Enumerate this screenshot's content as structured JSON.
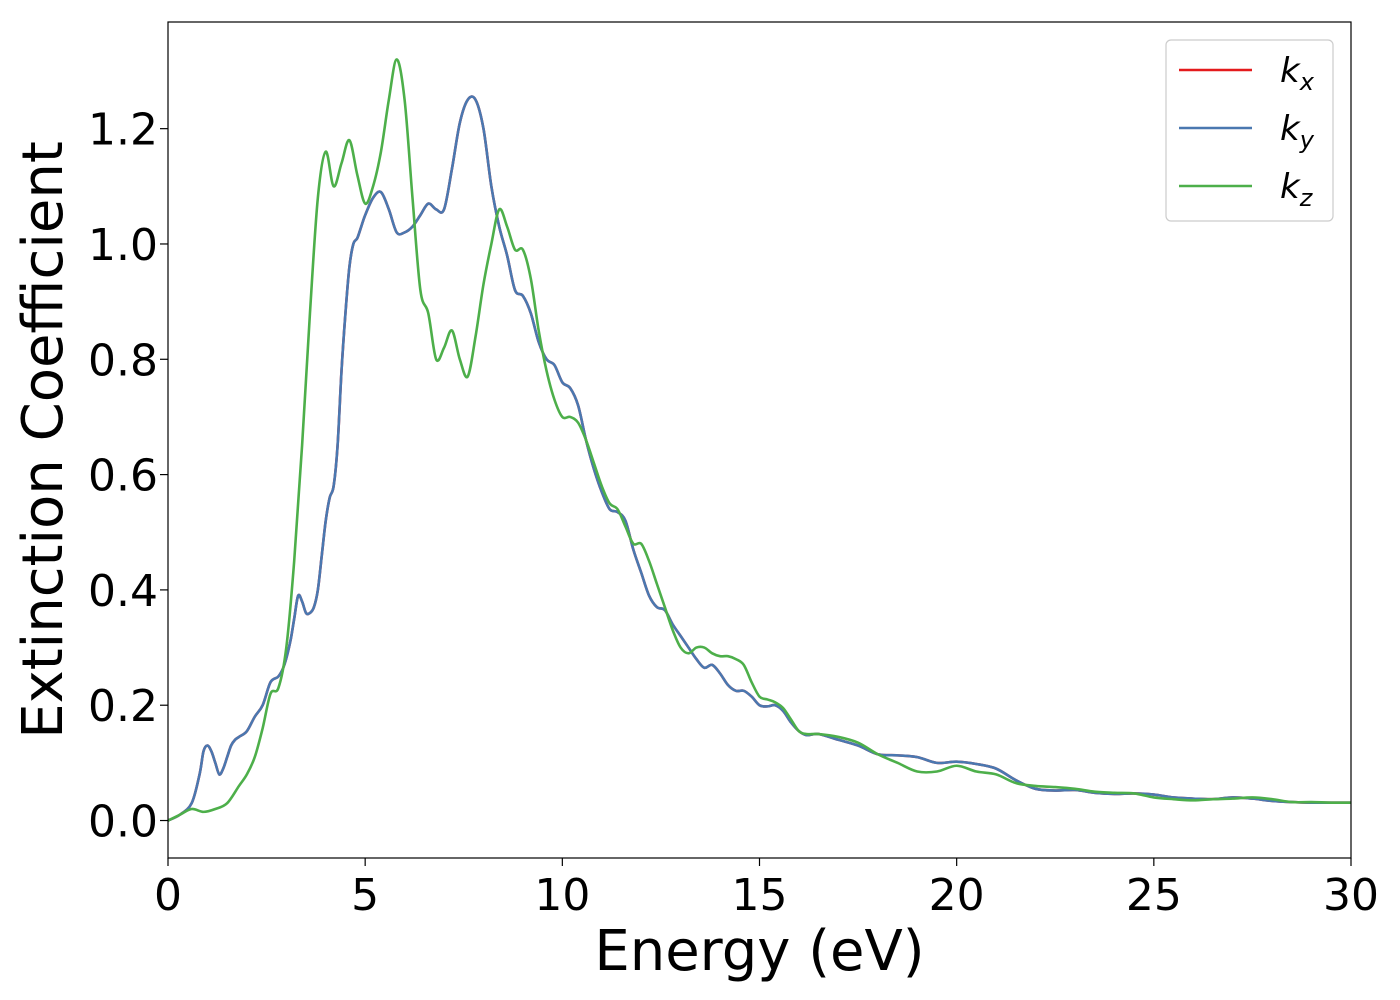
{
  "chart_data": {
    "type": "line",
    "title": "",
    "xlabel": "Energy (eV)",
    "ylabel": "Extinction Coefficient",
    "xlim": [
      0,
      30
    ],
    "ylim": [
      -0.065,
      1.385
    ],
    "xticks": [
      0,
      5,
      10,
      15,
      20,
      25,
      30
    ],
    "xtick_labels": [
      "0",
      "5",
      "10",
      "15",
      "20",
      "25",
      "30"
    ],
    "yticks": [
      0.0,
      0.2,
      0.4,
      0.6,
      0.8,
      1.0,
      1.2
    ],
    "ytick_labels": [
      "0.0",
      "0.2",
      "0.4",
      "0.6",
      "0.8",
      "1.0",
      "1.2"
    ],
    "grid": false,
    "legend_position": "top-right",
    "series": [
      {
        "name": "k_x",
        "legend_base": "k",
        "legend_sub": "x",
        "color": "#e41a1c",
        "x": [
          0,
          0.3,
          0.6,
          0.8,
          0.9,
          1.0,
          1.1,
          1.2,
          1.3,
          1.4,
          1.5,
          1.6,
          1.7,
          1.8,
          2.0,
          2.2,
          2.4,
          2.6,
          2.8,
          2.95,
          3.1,
          3.2,
          3.3,
          3.4,
          3.5,
          3.6,
          3.7,
          3.8,
          3.9,
          4.0,
          4.1,
          4.2,
          4.3,
          4.4,
          4.5,
          4.6,
          4.7,
          4.8,
          4.9,
          5.0,
          5.2,
          5.4,
          5.6,
          5.8,
          6.0,
          6.2,
          6.4,
          6.6,
          6.8,
          7.0,
          7.2,
          7.4,
          7.6,
          7.8,
          8.0,
          8.2,
          8.4,
          8.6,
          8.8,
          9.0,
          9.2,
          9.4,
          9.6,
          9.8,
          10.0,
          10.2,
          10.4,
          10.6,
          10.8,
          11.0,
          11.2,
          11.4,
          11.6,
          11.8,
          12.0,
          12.2,
          12.4,
          12.6,
          12.8,
          13.0,
          13.2,
          13.4,
          13.6,
          13.8,
          14.0,
          14.2,
          14.4,
          14.6,
          14.8,
          15.0,
          15.2,
          15.4,
          15.6,
          15.8,
          16.0,
          16.2,
          16.5,
          17.0,
          17.5,
          18.0,
          18.5,
          19.0,
          19.5,
          20.0,
          20.5,
          21.0,
          21.5,
          22.0,
          22.5,
          23.0,
          23.5,
          24.0,
          24.5,
          25.0,
          25.5,
          26.0,
          26.5,
          27.0,
          27.5,
          28.0,
          28.5,
          29.0,
          29.5,
          30.0
        ],
        "y": [
          0.0,
          0.01,
          0.03,
          0.08,
          0.12,
          0.13,
          0.12,
          0.1,
          0.08,
          0.09,
          0.11,
          0.13,
          0.14,
          0.145,
          0.155,
          0.18,
          0.2,
          0.24,
          0.25,
          0.27,
          0.31,
          0.35,
          0.39,
          0.38,
          0.36,
          0.36,
          0.37,
          0.4,
          0.46,
          0.52,
          0.56,
          0.58,
          0.65,
          0.78,
          0.88,
          0.96,
          1.0,
          1.01,
          1.03,
          1.05,
          1.08,
          1.09,
          1.06,
          1.02,
          1.02,
          1.03,
          1.05,
          1.07,
          1.06,
          1.06,
          1.13,
          1.21,
          1.25,
          1.25,
          1.2,
          1.1,
          1.03,
          0.98,
          0.92,
          0.91,
          0.88,
          0.83,
          0.8,
          0.79,
          0.76,
          0.75,
          0.72,
          0.66,
          0.61,
          0.57,
          0.54,
          0.535,
          0.52,
          0.47,
          0.43,
          0.39,
          0.37,
          0.365,
          0.34,
          0.32,
          0.3,
          0.28,
          0.265,
          0.27,
          0.255,
          0.235,
          0.225,
          0.225,
          0.215,
          0.2,
          0.198,
          0.2,
          0.19,
          0.17,
          0.155,
          0.148,
          0.15,
          0.14,
          0.13,
          0.115,
          0.113,
          0.11,
          0.1,
          0.102,
          0.098,
          0.09,
          0.07,
          0.055,
          0.052,
          0.053,
          0.048,
          0.046,
          0.047,
          0.045,
          0.04,
          0.038,
          0.037,
          0.04,
          0.038,
          0.034,
          0.032,
          0.031,
          0.031,
          0.031
        ]
      },
      {
        "name": "k_y",
        "legend_base": "k",
        "legend_sub": "y",
        "color": "#4a78b0",
        "x": [
          0,
          0.3,
          0.6,
          0.8,
          0.9,
          1.0,
          1.1,
          1.2,
          1.3,
          1.4,
          1.5,
          1.6,
          1.7,
          1.8,
          2.0,
          2.2,
          2.4,
          2.6,
          2.8,
          2.95,
          3.1,
          3.2,
          3.3,
          3.4,
          3.5,
          3.6,
          3.7,
          3.8,
          3.9,
          4.0,
          4.1,
          4.2,
          4.3,
          4.4,
          4.5,
          4.6,
          4.7,
          4.8,
          4.9,
          5.0,
          5.2,
          5.4,
          5.6,
          5.8,
          6.0,
          6.2,
          6.4,
          6.6,
          6.8,
          7.0,
          7.2,
          7.4,
          7.6,
          7.8,
          8.0,
          8.2,
          8.4,
          8.6,
          8.8,
          9.0,
          9.2,
          9.4,
          9.6,
          9.8,
          10.0,
          10.2,
          10.4,
          10.6,
          10.8,
          11.0,
          11.2,
          11.4,
          11.6,
          11.8,
          12.0,
          12.2,
          12.4,
          12.6,
          12.8,
          13.0,
          13.2,
          13.4,
          13.6,
          13.8,
          14.0,
          14.2,
          14.4,
          14.6,
          14.8,
          15.0,
          15.2,
          15.4,
          15.6,
          15.8,
          16.0,
          16.2,
          16.5,
          17.0,
          17.5,
          18.0,
          18.5,
          19.0,
          19.5,
          20.0,
          20.5,
          21.0,
          21.5,
          22.0,
          22.5,
          23.0,
          23.5,
          24.0,
          24.5,
          25.0,
          25.5,
          26.0,
          26.5,
          27.0,
          27.5,
          28.0,
          28.5,
          29.0,
          29.5,
          30.0
        ],
        "y": [
          0.0,
          0.01,
          0.03,
          0.08,
          0.12,
          0.13,
          0.12,
          0.1,
          0.08,
          0.09,
          0.11,
          0.13,
          0.14,
          0.145,
          0.155,
          0.18,
          0.2,
          0.24,
          0.25,
          0.27,
          0.31,
          0.35,
          0.39,
          0.38,
          0.36,
          0.36,
          0.37,
          0.4,
          0.46,
          0.52,
          0.56,
          0.58,
          0.65,
          0.78,
          0.88,
          0.96,
          1.0,
          1.01,
          1.03,
          1.05,
          1.08,
          1.09,
          1.06,
          1.02,
          1.02,
          1.03,
          1.05,
          1.07,
          1.06,
          1.06,
          1.13,
          1.21,
          1.25,
          1.25,
          1.2,
          1.1,
          1.03,
          0.98,
          0.92,
          0.91,
          0.88,
          0.83,
          0.8,
          0.79,
          0.76,
          0.75,
          0.72,
          0.66,
          0.61,
          0.57,
          0.54,
          0.535,
          0.52,
          0.47,
          0.43,
          0.39,
          0.37,
          0.365,
          0.34,
          0.32,
          0.3,
          0.28,
          0.265,
          0.27,
          0.255,
          0.235,
          0.225,
          0.225,
          0.215,
          0.2,
          0.198,
          0.2,
          0.19,
          0.17,
          0.155,
          0.148,
          0.15,
          0.14,
          0.13,
          0.115,
          0.113,
          0.11,
          0.1,
          0.102,
          0.098,
          0.09,
          0.07,
          0.055,
          0.052,
          0.053,
          0.048,
          0.046,
          0.047,
          0.045,
          0.04,
          0.038,
          0.037,
          0.04,
          0.038,
          0.034,
          0.032,
          0.031,
          0.031,
          0.031
        ]
      },
      {
        "name": "k_z",
        "legend_base": "k",
        "legend_sub": "z",
        "color": "#4daf4a",
        "x": [
          0,
          0.3,
          0.6,
          0.9,
          1.2,
          1.5,
          1.8,
          2.0,
          2.2,
          2.4,
          2.6,
          2.8,
          3.0,
          3.2,
          3.4,
          3.6,
          3.8,
          4.0,
          4.2,
          4.4,
          4.6,
          4.8,
          5.0,
          5.2,
          5.4,
          5.6,
          5.8,
          6.0,
          6.2,
          6.4,
          6.6,
          6.8,
          7.0,
          7.2,
          7.4,
          7.6,
          7.8,
          8.0,
          8.2,
          8.4,
          8.6,
          8.8,
          9.0,
          9.2,
          9.4,
          9.6,
          9.8,
          10.0,
          10.2,
          10.4,
          10.6,
          10.8,
          11.0,
          11.2,
          11.4,
          11.6,
          11.8,
          12.0,
          12.2,
          12.4,
          12.6,
          12.8,
          13.0,
          13.2,
          13.4,
          13.6,
          13.8,
          14.0,
          14.2,
          14.4,
          14.6,
          14.8,
          15.0,
          15.2,
          15.4,
          15.6,
          15.8,
          16.0,
          16.2,
          16.5,
          17.0,
          17.5,
          18.0,
          18.5,
          19.0,
          19.5,
          20.0,
          20.5,
          21.0,
          21.5,
          22.0,
          22.5,
          23.0,
          23.5,
          24.0,
          24.5,
          25.0,
          25.5,
          26.0,
          26.5,
          27.0,
          27.5,
          28.0,
          28.5,
          29.0,
          29.5,
          30.0
        ],
        "y": [
          0.0,
          0.01,
          0.02,
          0.015,
          0.02,
          0.03,
          0.06,
          0.08,
          0.11,
          0.16,
          0.22,
          0.23,
          0.3,
          0.45,
          0.65,
          0.88,
          1.08,
          1.16,
          1.1,
          1.14,
          1.18,
          1.12,
          1.07,
          1.1,
          1.16,
          1.25,
          1.32,
          1.25,
          1.08,
          0.92,
          0.88,
          0.8,
          0.82,
          0.85,
          0.8,
          0.77,
          0.84,
          0.93,
          1.0,
          1.06,
          1.03,
          0.99,
          0.99,
          0.94,
          0.85,
          0.78,
          0.73,
          0.7,
          0.7,
          0.69,
          0.66,
          0.62,
          0.58,
          0.55,
          0.54,
          0.51,
          0.48,
          0.48,
          0.45,
          0.41,
          0.37,
          0.33,
          0.3,
          0.29,
          0.3,
          0.3,
          0.29,
          0.285,
          0.285,
          0.28,
          0.27,
          0.24,
          0.215,
          0.21,
          0.205,
          0.195,
          0.175,
          0.155,
          0.15,
          0.15,
          0.145,
          0.135,
          0.115,
          0.1,
          0.085,
          0.085,
          0.095,
          0.085,
          0.08,
          0.065,
          0.06,
          0.058,
          0.055,
          0.05,
          0.048,
          0.047,
          0.04,
          0.037,
          0.035,
          0.037,
          0.038,
          0.04,
          0.037,
          0.032,
          0.032,
          0.031,
          0.031
        ]
      }
    ]
  }
}
